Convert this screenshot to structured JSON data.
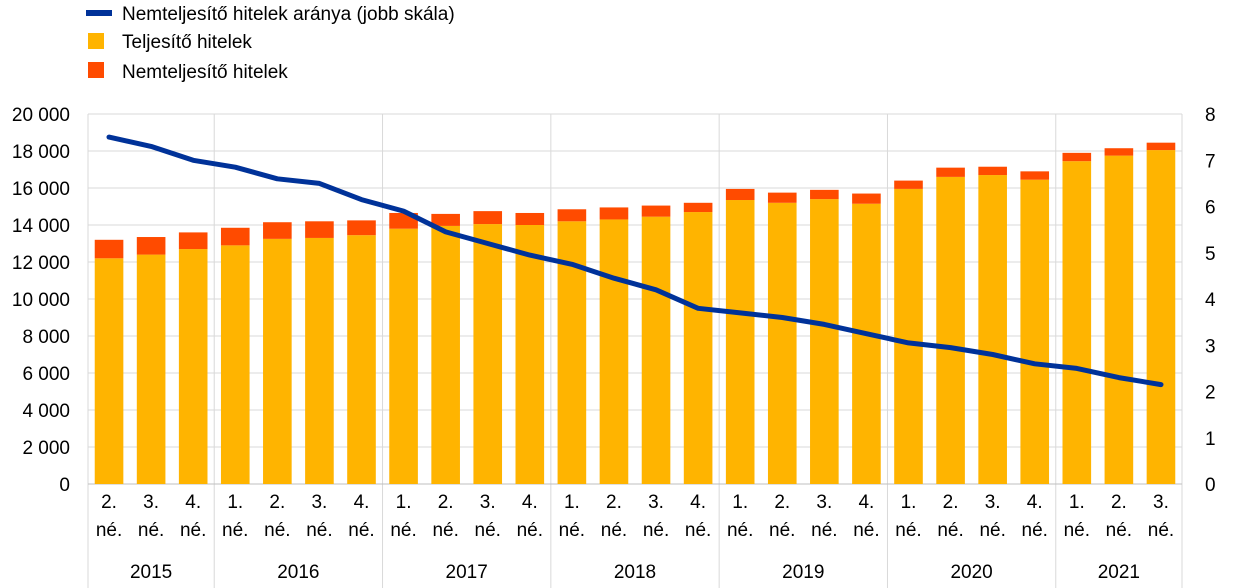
{
  "colors": {
    "performing": "#FFB400",
    "nonperforming": "#FF4B00",
    "ratio_line": "#003299",
    "grid": "#d9d9d9"
  },
  "legend": [
    {
      "key": "ratio",
      "label": "Nemteljesítő hitelek aránya (jobb skála)",
      "shape": "line"
    },
    {
      "key": "performing",
      "label": "Teljesítő hitelek",
      "shape": "square"
    },
    {
      "key": "nonperforming",
      "label": "Nemteljesítő hitelek",
      "shape": "square"
    }
  ],
  "chart_data": {
    "type": "bar",
    "stacked": true,
    "legend_position": "top-left",
    "grid": {
      "horizontal": true,
      "vertical": true
    },
    "categories": [
      [
        "2.",
        "né."
      ],
      [
        "3.",
        "né."
      ],
      [
        "4.",
        "né."
      ],
      [
        "1.",
        "né."
      ],
      [
        "2.",
        "né."
      ],
      [
        "3.",
        "né."
      ],
      [
        "4.",
        "né."
      ],
      [
        "1.",
        "né."
      ],
      [
        "2.",
        "né."
      ],
      [
        "3.",
        "né."
      ],
      [
        "4.",
        "né."
      ],
      [
        "1.",
        "né."
      ],
      [
        "2.",
        "né."
      ],
      [
        "3.",
        "né."
      ],
      [
        "4.",
        "né."
      ],
      [
        "1.",
        "né."
      ],
      [
        "2.",
        "né."
      ],
      [
        "3.",
        "né."
      ],
      [
        "4.",
        "né."
      ],
      [
        "1.",
        "né."
      ],
      [
        "2.",
        "né."
      ],
      [
        "3.",
        "né."
      ],
      [
        "4.",
        "né."
      ],
      [
        "1.",
        "né."
      ],
      [
        "2.",
        "né."
      ],
      [
        "3.",
        "né."
      ]
    ],
    "year_groups": [
      {
        "label": "2015",
        "count": 3
      },
      {
        "label": "2016",
        "count": 4
      },
      {
        "label": "2017",
        "count": 4
      },
      {
        "label": "2018",
        "count": 4
      },
      {
        "label": "2019",
        "count": 4
      },
      {
        "label": "2020",
        "count": 4
      },
      {
        "label": "2021",
        "count": 3
      }
    ],
    "y_left": {
      "min": 0,
      "max": 20000,
      "step": 2000,
      "tick_labels": [
        "0",
        "2 000",
        "4 000",
        "6 000",
        "8 000",
        "10 000",
        "12 000",
        "14 000",
        "16 000",
        "18 000",
        "20 000"
      ]
    },
    "y_right": {
      "min": 0,
      "max": 8,
      "step": 1,
      "tick_labels": [
        "0",
        "1",
        "2",
        "3",
        "4",
        "5",
        "6",
        "7",
        "8"
      ]
    },
    "series": [
      {
        "name": "Teljesítő hitelek",
        "axis": "left",
        "kind": "bar",
        "values": [
          12200,
          12400,
          12700,
          12900,
          13250,
          13300,
          13450,
          13800,
          13950,
          14050,
          14000,
          14200,
          14300,
          14450,
          14700,
          15350,
          15200,
          15400,
          15150,
          15950,
          16600,
          16700,
          16450,
          17450,
          17750,
          18050
        ]
      },
      {
        "name": "Nemteljesítő hitelek",
        "axis": "left",
        "kind": "bar",
        "values": [
          1000,
          950,
          900,
          950,
          900,
          900,
          800,
          850,
          650,
          700,
          650,
          650,
          650,
          600,
          500,
          600,
          550,
          500,
          550,
          450,
          500,
          450,
          450,
          450,
          400,
          400
        ]
      },
      {
        "name": "Nemteljesítő hitelek aránya (jobb skála)",
        "axis": "right",
        "kind": "line",
        "values": [
          7.5,
          7.3,
          7.0,
          6.85,
          6.6,
          6.5,
          6.15,
          5.9,
          5.45,
          5.2,
          4.95,
          4.75,
          4.45,
          4.2,
          3.8,
          3.7,
          3.6,
          3.45,
          3.25,
          3.05,
          2.95,
          2.8,
          2.6,
          2.5,
          2.3,
          2.15
        ]
      }
    ]
  }
}
